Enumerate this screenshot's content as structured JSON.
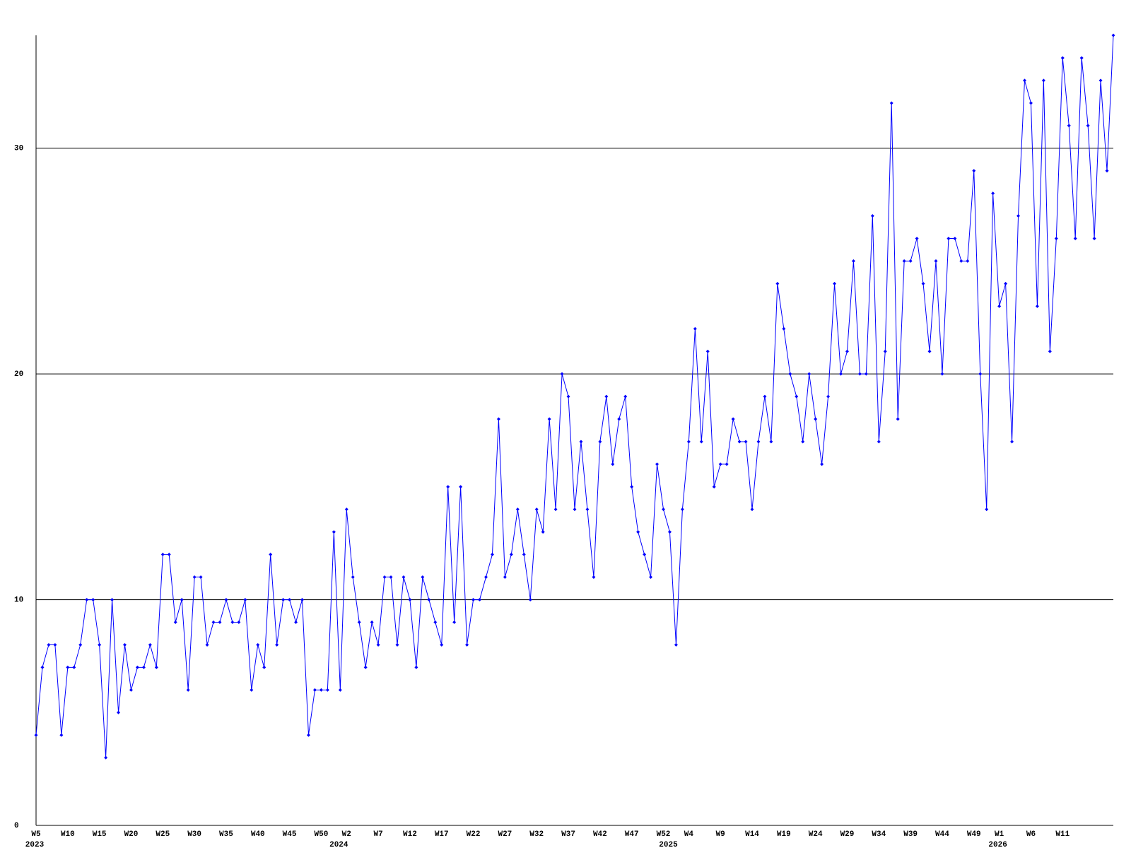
{
  "chart_data": {
    "type": "line",
    "color": "#0000ff",
    "grid": true,
    "ylim": [
      0,
      35
    ],
    "yticks": [
      0,
      10,
      20,
      30
    ],
    "categories": [
      "W5",
      null,
      null,
      null,
      null,
      "W10",
      null,
      null,
      null,
      null,
      "W15",
      null,
      null,
      null,
      null,
      "W20",
      null,
      null,
      null,
      null,
      "W25",
      null,
      null,
      null,
      null,
      "W30",
      null,
      null,
      null,
      null,
      "W35",
      null,
      null,
      null,
      null,
      "W40",
      null,
      null,
      null,
      null,
      "W45",
      null,
      null,
      null,
      null,
      "W50",
      null,
      null,
      null,
      "W2",
      null,
      null,
      null,
      null,
      "W7",
      null,
      null,
      null,
      null,
      "W12",
      null,
      null,
      null,
      null,
      "W17",
      null,
      null,
      null,
      null,
      "W22",
      null,
      null,
      null,
      null,
      "W27",
      null,
      null,
      null,
      null,
      "W32",
      null,
      null,
      null,
      null,
      "W37",
      null,
      null,
      null,
      null,
      "W42",
      null,
      null,
      null,
      null,
      "W47",
      null,
      null,
      null,
      null,
      "W52",
      null,
      null,
      null,
      "W4",
      null,
      null,
      null,
      null,
      "W9",
      null,
      null,
      null,
      null,
      "W14",
      null,
      null,
      null,
      null,
      "W19",
      null,
      null,
      null,
      null,
      "W24",
      null,
      null,
      null,
      null,
      "W29",
      null,
      null,
      null,
      null,
      "W34",
      null,
      null,
      null,
      null,
      "W39",
      null,
      null,
      null,
      null,
      "W44",
      null,
      null,
      null,
      null,
      "W49",
      null,
      null,
      null,
      "W1",
      null,
      null,
      null,
      null,
      "W6",
      null,
      null,
      null,
      null,
      "W11",
      null,
      null,
      null,
      null,
      null,
      null,
      null,
      null
    ],
    "category_groups": [
      "2023",
      null,
      null,
      null,
      null,
      null,
      null,
      null,
      null,
      null,
      null,
      null,
      null,
      null,
      null,
      null,
      null,
      null,
      null,
      null,
      null,
      null,
      null,
      null,
      null,
      null,
      null,
      null,
      null,
      null,
      null,
      null,
      null,
      null,
      null,
      null,
      null,
      null,
      null,
      null,
      null,
      null,
      null,
      null,
      null,
      null,
      null,
      null,
      "2024",
      null,
      null,
      null,
      null,
      null,
      null,
      null,
      null,
      null,
      null,
      null,
      null,
      null,
      null,
      null,
      null,
      null,
      null,
      null,
      null,
      null,
      null,
      null,
      null,
      null,
      null,
      null,
      null,
      null,
      null,
      null,
      null,
      null,
      null,
      null,
      null,
      null,
      null,
      null,
      null,
      null,
      null,
      null,
      null,
      null,
      null,
      null,
      null,
      null,
      null,
      null,
      "2025",
      null,
      null,
      null,
      null,
      null,
      null,
      null,
      null,
      null,
      null,
      null,
      null,
      null,
      null,
      null,
      null,
      null,
      null,
      null,
      null,
      null,
      null,
      null,
      null,
      null,
      null,
      null,
      null,
      null,
      null,
      null,
      null,
      null,
      null,
      null,
      null,
      null,
      null,
      null,
      null,
      null,
      null,
      null,
      null,
      null,
      null,
      null,
      null,
      null,
      null,
      null,
      "2026",
      null,
      null,
      null,
      null,
      null,
      null,
      null,
      null,
      null,
      null,
      null,
      null,
      null,
      null,
      null,
      null,
      null,
      null
    ],
    "values": [
      4,
      7,
      8,
      8,
      4,
      7,
      7,
      8,
      10,
      10,
      8,
      3,
      10,
      5,
      8,
      6,
      7,
      7,
      8,
      7,
      12,
      12,
      9,
      10,
      6,
      11,
      11,
      8,
      9,
      9,
      10,
      9,
      9,
      10,
      6,
      8,
      7,
      12,
      8,
      10,
      10,
      9,
      10,
      4,
      6,
      6,
      6,
      13,
      6,
      14,
      11,
      9,
      7,
      9,
      8,
      11,
      11,
      8,
      11,
      10,
      7,
      11,
      10,
      9,
      8,
      15,
      9,
      15,
      8,
      10,
      10,
      11,
      12,
      18,
      11,
      12,
      14,
      12,
      10,
      14,
      13,
      18,
      14,
      20,
      19,
      14,
      17,
      14,
      11,
      17,
      19,
      16,
      18,
      19,
      15,
      13,
      12,
      11,
      16,
      14,
      13,
      8,
      14,
      17,
      22,
      17,
      21,
      15,
      16,
      16,
      18,
      17,
      17,
      14,
      17,
      19,
      17,
      24,
      22,
      20,
      19,
      17,
      20,
      18,
      16,
      19,
      24,
      20,
      21,
      25,
      20,
      20,
      27,
      17,
      21,
      32,
      18,
      25,
      25,
      26,
      24,
      21,
      25,
      20,
      26,
      26,
      25,
      25,
      29,
      20,
      14,
      28,
      23,
      24,
      17,
      27,
      33,
      32,
      23,
      33,
      21,
      26,
      34,
      31,
      26,
      34,
      31,
      26,
      33,
      29,
      35
    ]
  }
}
